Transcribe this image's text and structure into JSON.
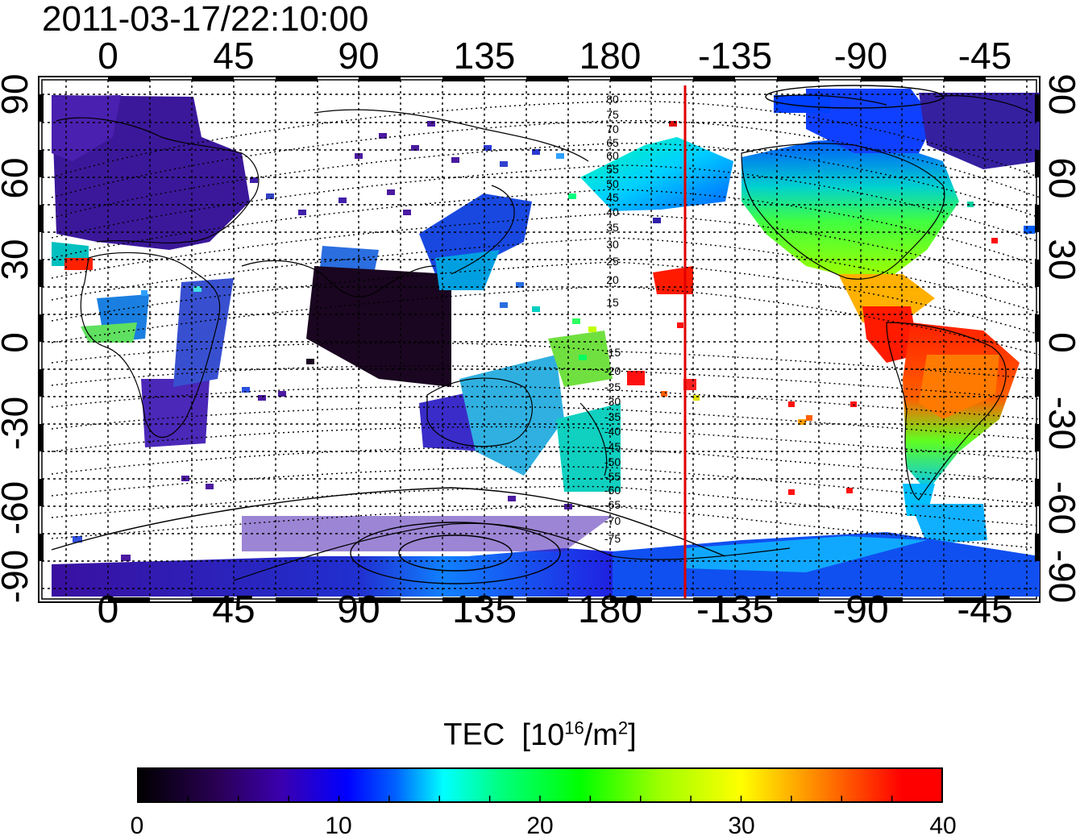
{
  "timestamp": "2011-03-17/22:10:00",
  "map": {
    "lon_ticks_top": [
      "0",
      "45",
      "90",
      "135",
      "180",
      "-135",
      "-90",
      "-45"
    ],
    "lon_ticks_bottom": [
      "0",
      "45",
      "90",
      "135",
      "180",
      "-135",
      "-90",
      "-45"
    ],
    "lat_ticks_left": [
      "90",
      "60",
      "30",
      "0",
      "-30",
      "-60",
      "-90"
    ],
    "lat_ticks_right": [
      "90",
      "60",
      "30",
      "0",
      "-30",
      "-60",
      "-90"
    ],
    "contour_labels_north": [
      "80",
      "75",
      "70",
      "65",
      "60",
      "55",
      "50",
      "45",
      "40",
      "35",
      "30",
      "25",
      "20",
      "15"
    ],
    "contour_labels_south": [
      "-15",
      "-20",
      "-25",
      "-30",
      "-35",
      "-40",
      "-45",
      "-50",
      "-55",
      "-60",
      "-65",
      "-70",
      "-75"
    ],
    "terminator_line_color": "#e00000"
  },
  "colorbar": {
    "title": "TEC",
    "unit_base": "[10",
    "unit_exp": "16",
    "unit_tail": "/m",
    "unit_sq": "2",
    "unit_close": "]",
    "min": 0,
    "max": 40,
    "ticks": [
      "0",
      "10",
      "20",
      "30",
      "40"
    ],
    "colormap": [
      "#000000",
      "#2a0055",
      "#3a00b0",
      "#0000ff",
      "#0080ff",
      "#00ffff",
      "#00ff80",
      "#00ff00",
      "#a0ff00",
      "#ffff00",
      "#ff8000",
      "#ff0000"
    ]
  }
}
